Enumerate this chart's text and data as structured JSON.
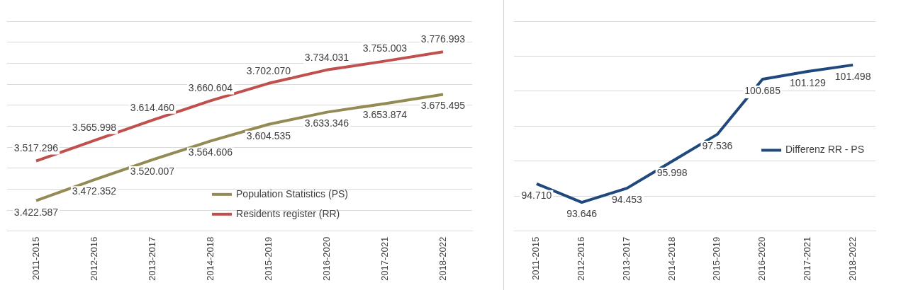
{
  "chart_data": [
    {
      "type": "line",
      "categories": [
        "2011-2015",
        "2012-2016",
        "2013-2017",
        "2014-2018",
        "2015-2019",
        "2016-2020",
        "2017-2021",
        "2018-2022"
      ],
      "series": [
        {
          "name": "Population Statistics (PS)",
          "color": "#948a54",
          "values": [
            3422587,
            3472352,
            3520007,
            3564606,
            3604535,
            3633346,
            3653874,
            3675495
          ],
          "value_labels": [
            "3.422.587",
            "3.472.352",
            "3.520.007",
            "3.564.606",
            "3.604.535",
            "3.633.346",
            "3.653.874",
            "3.675.495"
          ]
        },
        {
          "name": "Residents register (RR)",
          "color": "#c0504d",
          "values": [
            3517296,
            3565998,
            3614460,
            3660604,
            3702070,
            3734031,
            3755003,
            3776993
          ],
          "value_labels": [
            "3.517.296",
            "3.565.998",
            "3.614.460",
            "3.660.604",
            "3.702.070",
            "3.734.031",
            "3.755.003",
            "3.776.993"
          ]
        }
      ],
      "legend": "bottom",
      "grid": "y",
      "tick_labels": "x",
      "marker": "none"
    },
    {
      "type": "line",
      "categories": [
        "2011-2015",
        "2012-2016",
        "2013-2017",
        "2014-2018",
        "2015-2019",
        "2016-2020",
        "2017-2021",
        "2018-2022"
      ],
      "series": [
        {
          "name": "Differenz RR - PS",
          "color": "#1f497d",
          "values": [
            94710,
            93646,
            94453,
            95998,
            97536,
            100685,
            101129,
            101498
          ],
          "value_labels": [
            "94.710",
            "93.646",
            "94.453",
            "95.998",
            "97.536",
            "100.685",
            "101.129",
            "101.498"
          ]
        }
      ],
      "legend": "right",
      "grid": "y",
      "tick_labels": "x",
      "marker": "none"
    }
  ]
}
